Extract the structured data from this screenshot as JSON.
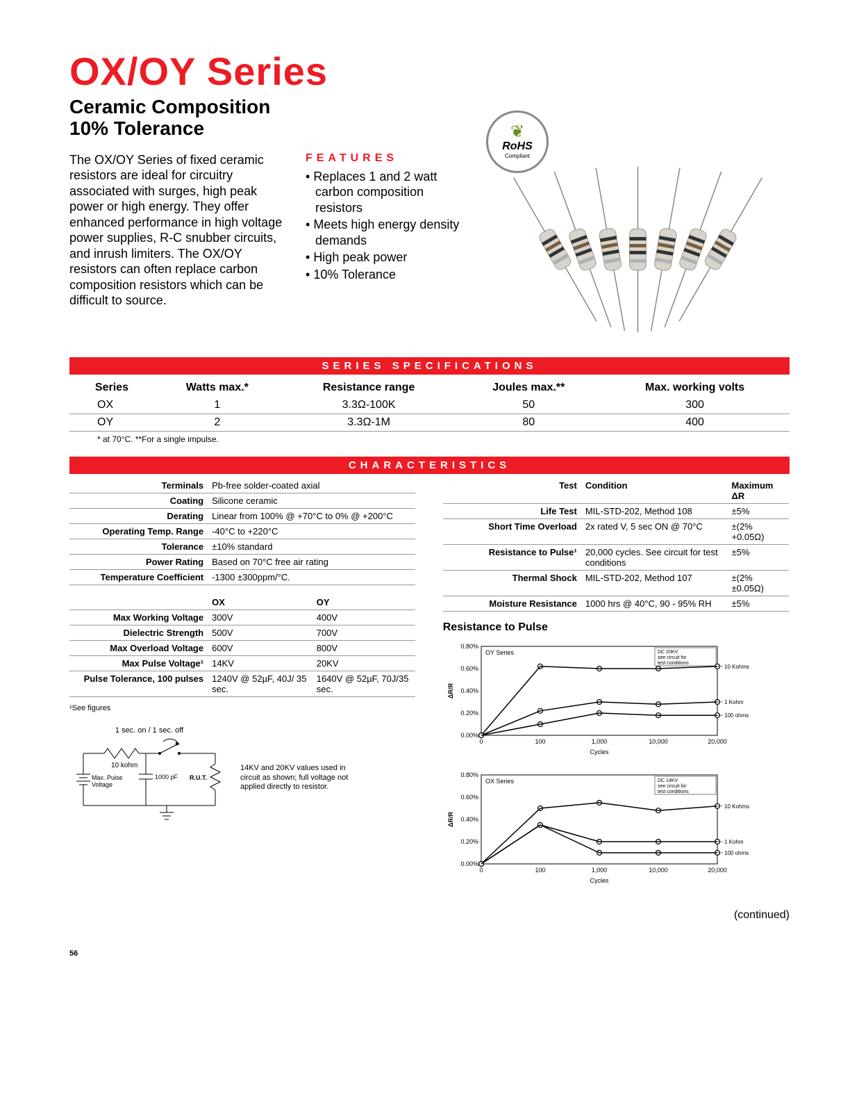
{
  "title": "OX/OY Series",
  "subtitle_line1": "Ceramic Composition",
  "subtitle_line2": "10% Tolerance",
  "intro": "The OX/OY Series of fixed ceramic resistors are ideal for circuitry associated with surges, high peak power or high energy. They offer enhanced performance in high voltage power supplies, R-C snubber circuits, and inrush limiters. The OX/OY resistors can often replace carbon composition  resistors which can be difficult to source.",
  "features_heading": "FEATURES",
  "features": [
    "Replaces 1 and 2 watt carbon composition resistors",
    "Meets high energy density demands",
    "High peak power",
    "10% Tolerance"
  ],
  "rohs": {
    "main": "RoHS",
    "sub": "Compliant"
  },
  "spec_bar": "SERIES SPECIFICATIONS",
  "spec_headers": [
    "Series",
    "Watts  max.*",
    "Resistance range",
    "Joules max.**",
    "Max. working volts"
  ],
  "spec_rows": [
    [
      "OX",
      "1",
      "3.3Ω-100K",
      "50",
      "300"
    ],
    [
      "OY",
      "2",
      "3.3Ω-1M",
      "80",
      "400"
    ]
  ],
  "spec_footnote": "* at 70°C.   **For a single impulse.",
  "char_bar": "CHARACTERISTICS",
  "char_left": [
    {
      "lbl": "Terminals",
      "val": "Pb-free solder-coated axial"
    },
    {
      "lbl": "Coating",
      "val": "Silicone ceramic"
    },
    {
      "lbl": "Derating",
      "val": "Linear from 100% @ +70°C to 0% @ +200°C"
    },
    {
      "lbl": "Operating Temp. Range",
      "val": "-40°C to +220°C"
    },
    {
      "lbl": "Tolerance",
      "val": "±10% standard"
    },
    {
      "lbl": "Power Rating",
      "val": "Based on 70°C free air rating"
    },
    {
      "lbl": "Temperature Coefficient",
      "val": "-1300 ±300ppm/°C."
    }
  ],
  "voltage_headers": [
    "",
    "OX",
    "OY"
  ],
  "voltage_rows": [
    [
      "Max Working Voltage",
      "300V",
      "400V"
    ],
    [
      "Dielectric Strength",
      "500V",
      "700V"
    ],
    [
      "Max Overload Voltage",
      "600V",
      "800V"
    ],
    [
      "Max Pulse Voltage¹",
      "14KV",
      "20KV"
    ],
    [
      "Pulse Tolerance, 100 pulses",
      "1240V @ 52µF, 40J/ 35 sec.",
      "1640V @ 52µF, 70J/35 sec."
    ]
  ],
  "see_figures": "¹See figures",
  "timing_label": "1 sec. on / 1 sec. off",
  "circuit_labels": {
    "r1": "10 kohm",
    "src": "Max. Pulse Voltage",
    "cap": "1000 pF",
    "rut": "R.U.T."
  },
  "circuit_note": "14KV and 20KV values used in circuit as shown; full voltage not applied directly to resistor.",
  "test_headers": [
    "Test",
    "Condition",
    "Maximum ΔR"
  ],
  "test_rows": [
    [
      "Life Test",
      "MIL-STD-202, Method 108",
      "±5%"
    ],
    [
      "Short Time Overload",
      "2x rated V, 5 sec ON @ 70°C",
      "±(2% +0.05Ω)"
    ],
    [
      "Resistance to Pulse¹",
      "20,000 cycles. See circuit for test conditions",
      "±5%"
    ],
    [
      "Thermal Shock",
      "MIL-STD-202, Method 107",
      "±(2% ±0.05Ω)"
    ],
    [
      "Moisture Resistance",
      "1000 hrs @ 40°C, 90 - 95% RH",
      "±5%"
    ]
  ],
  "pulse_heading": "Resistance to Pulse",
  "chart1": {
    "title": "OY Series",
    "note": "DC 20KV see circuit for test conditions",
    "ylabel": "ΔR/R",
    "xlabel": "Cycles",
    "xticks": [
      "0",
      "100",
      "1,000",
      "10,000",
      "20,000"
    ],
    "yticks": [
      "0.00%",
      "0.20%",
      "0.40%",
      "0.60%",
      "0.80%"
    ],
    "series": [
      {
        "label": "10 Kohms",
        "points": [
          [
            0,
            0
          ],
          [
            100,
            0.62
          ],
          [
            1000,
            0.6
          ],
          [
            10000,
            0.6
          ],
          [
            20000,
            0.62
          ]
        ]
      },
      {
        "label": "1 Kohm",
        "points": [
          [
            0,
            0
          ],
          [
            100,
            0.22
          ],
          [
            1000,
            0.3
          ],
          [
            10000,
            0.28
          ],
          [
            20000,
            0.3
          ]
        ]
      },
      {
        "label": "100 ohms",
        "points": [
          [
            0,
            0
          ],
          [
            100,
            0.1
          ],
          [
            1000,
            0.2
          ],
          [
            10000,
            0.18
          ],
          [
            20000,
            0.18
          ]
        ]
      }
    ],
    "ylim": [
      0,
      0.8
    ],
    "line_color": "#000000",
    "marker": "circle"
  },
  "chart2": {
    "title": "OX Series",
    "note": "DC 14KV see circuit for test conditions",
    "ylabel": "ΔR/R",
    "xlabel": "Cycles",
    "xticks": [
      "0",
      "100",
      "1,000",
      "10,000",
      "20,000"
    ],
    "yticks": [
      "0.00%",
      "0.20%",
      "0.40%",
      "0.60%",
      "0.80%"
    ],
    "series": [
      {
        "label": "10 Kohms",
        "points": [
          [
            0,
            0
          ],
          [
            100,
            0.5
          ],
          [
            1000,
            0.55
          ],
          [
            10000,
            0.48
          ],
          [
            20000,
            0.52
          ]
        ]
      },
      {
        "label": "1 Kohm",
        "points": [
          [
            0,
            0
          ],
          [
            100,
            0.35
          ],
          [
            1000,
            0.2
          ],
          [
            10000,
            0.2
          ],
          [
            20000,
            0.2
          ]
        ]
      },
      {
        "label": "100 ohms",
        "points": [
          [
            0,
            0
          ],
          [
            100,
            0.35
          ],
          [
            1000,
            0.1
          ],
          [
            10000,
            0.1
          ],
          [
            20000,
            0.1
          ]
        ]
      }
    ],
    "ylim": [
      0,
      0.8
    ],
    "line_color": "#000000",
    "marker": "circle"
  },
  "continued": "(continued)",
  "page_num": "56",
  "colors": {
    "accent": "#ed1c24",
    "text": "#000000"
  }
}
